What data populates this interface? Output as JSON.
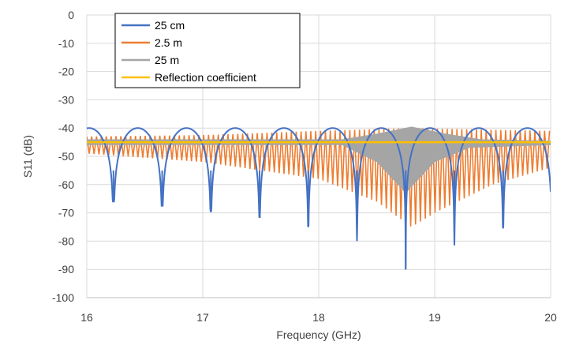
{
  "chart_data": {
    "type": "line",
    "title": "",
    "xlabel": "Frequency (GHz)",
    "ylabel": "S11 (dB)",
    "xlim": [
      16,
      20
    ],
    "ylim": [
      -100,
      0
    ],
    "x_ticks": [
      16,
      17,
      18,
      19,
      20
    ],
    "y_ticks": [
      0,
      -10,
      -20,
      -30,
      -40,
      -50,
      -60,
      -70,
      -80,
      -90,
      -100
    ],
    "grid": true,
    "legend_position": "top-left",
    "series": [
      {
        "name": "25 cm",
        "color": "#4472C4",
        "style": "periodic-notch",
        "peak": -40,
        "notch_period_ghz": 0.42,
        "notches": [
          {
            "x": 16.23,
            "y": -66
          },
          {
            "x": 16.65,
            "y": -67.5
          },
          {
            "x": 17.07,
            "y": -69.5
          },
          {
            "x": 17.49,
            "y": -71.5
          },
          {
            "x": 17.91,
            "y": -75
          },
          {
            "x": 18.33,
            "y": -80
          },
          {
            "x": 18.75,
            "y": -90
          },
          {
            "x": 19.17,
            "y": -81.5
          },
          {
            "x": 19.59,
            "y": -75.5
          }
        ]
      },
      {
        "name": "2.5 m",
        "color": "#ED7D31",
        "style": "dense-oscillation",
        "upper": [
          [
            16,
            -43
          ],
          [
            17,
            -42.5
          ],
          [
            18,
            -41
          ],
          [
            18.8,
            -40
          ],
          [
            20,
            -41
          ]
        ],
        "lower": [
          [
            16,
            -49
          ],
          [
            17,
            -52
          ],
          [
            17.5,
            -55
          ],
          [
            18,
            -58
          ],
          [
            18.5,
            -66
          ],
          [
            18.8,
            -75
          ],
          [
            19,
            -70
          ],
          [
            19.5,
            -60
          ],
          [
            20,
            -54
          ]
        ]
      },
      {
        "name": "25 m",
        "color": "#A5A5A5",
        "style": "dense-oscillation",
        "upper": [
          [
            16,
            -44
          ],
          [
            18.2,
            -44
          ],
          [
            18.5,
            -42
          ],
          [
            18.8,
            -39.5
          ],
          [
            19.1,
            -42
          ],
          [
            19.4,
            -44
          ],
          [
            20,
            -44.5
          ]
        ],
        "lower": [
          [
            16,
            -46
          ],
          [
            18.2,
            -46
          ],
          [
            18.5,
            -52
          ],
          [
            18.75,
            -63
          ],
          [
            19.0,
            -52
          ],
          [
            19.3,
            -47
          ],
          [
            20,
            -46
          ]
        ]
      },
      {
        "name": "Reflection coefficient",
        "color": "#FFC000",
        "style": "constant",
        "value": -45
      }
    ]
  }
}
